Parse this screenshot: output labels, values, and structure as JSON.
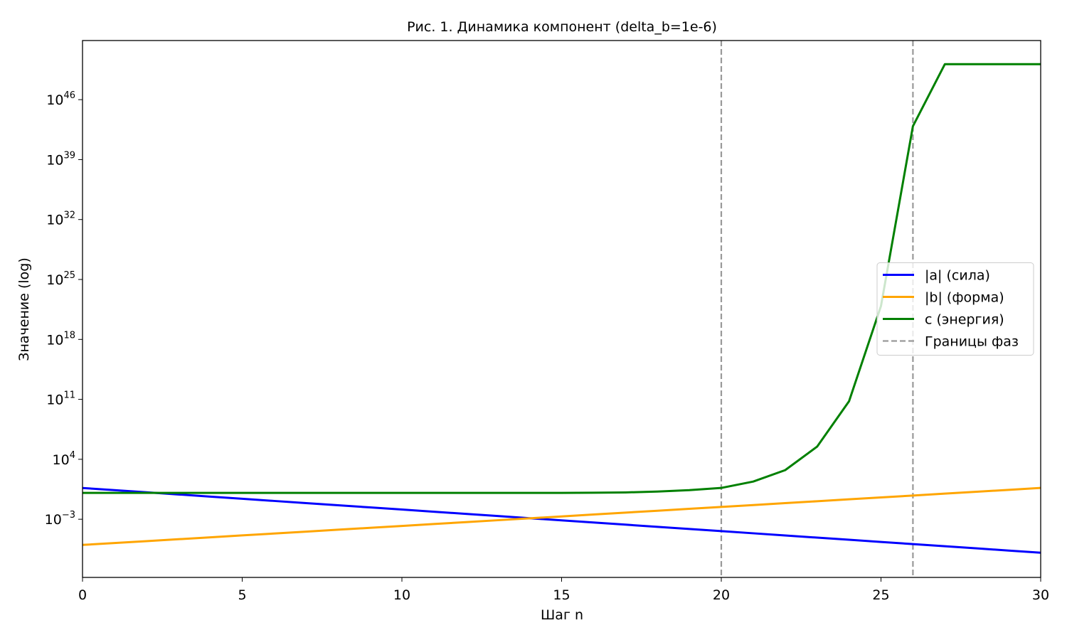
{
  "chart_data": {
    "type": "line",
    "title": "Рис. 1. Динамика компонент (delta_b=1e-6)",
    "x_label": "Шаг n",
    "y_label": "Значение (log)",
    "x": [
      0,
      1,
      2,
      3,
      4,
      5,
      6,
      7,
      8,
      9,
      10,
      11,
      12,
      13,
      14,
      15,
      16,
      17,
      18,
      19,
      20,
      21,
      22,
      23,
      24,
      25,
      26,
      27,
      28,
      29,
      30
    ],
    "series": [
      {
        "name": "|a| (сила)",
        "color": "#0000ff",
        "values": [
          4.47,
          2.5,
          1.4,
          0.783,
          0.439,
          0.245,
          0.137,
          0.0769,
          0.0431,
          0.0241,
          0.0135,
          0.00755,
          0.00423,
          0.00237,
          0.00132,
          0.000741,
          0.000415,
          0.000232,
          0.00013,
          7.28e-05,
          4.07e-05,
          2.28e-05,
          1.28e-05,
          7.14e-06,
          4e-06,
          2.24e-06,
          1.25e-06,
          7e-07,
          3.93e-07,
          2.2e-07,
          1.23e-07
        ]
      },
      {
        "name": "|b| (форма)",
        "color": "#ffa500",
        "values": [
          1e-06,
          1.667e-06,
          2.778e-06,
          4.63e-06,
          7.716e-06,
          1.286e-05,
          2.143e-05,
          3.572e-05,
          5.954e-05,
          9.923e-05,
          0.0001654,
          0.0002756,
          0.0004594,
          0.0007656,
          0.001276,
          0.002127,
          0.003545,
          0.005908,
          0.009846,
          0.01641,
          0.02735,
          0.04559,
          0.07598,
          0.1266,
          0.211,
          0.3517,
          0.5862,
          0.977,
          1.628,
          2.714,
          4.523
        ]
      },
      {
        "name": "c (энергия)",
        "color": "#008000",
        "values": [
          1.2,
          1.2,
          1.2,
          1.2,
          1.2,
          1.2,
          1.2,
          1.2,
          1.2,
          1.2,
          1.2,
          1.2,
          1.2,
          1.2,
          1.2,
          1.2,
          1.25,
          1.35,
          1.7,
          2.5,
          4.5,
          25,
          540,
          300000.0,
          60000000000.0,
          8e+21,
          8e+42,
          1.4e+50,
          1.4e+50,
          1.4e+50,
          1.4e+50
        ]
      }
    ],
    "phase_boundaries_name": "Границы фаз",
    "phase_boundaries_color": "#999999",
    "phase_boundaries": [
      20,
      26
    ],
    "xlim": [
      0,
      30
    ],
    "xticks": [
      0,
      5,
      10,
      15,
      20,
      25,
      30
    ],
    "ylim": [
      1.6e-10,
      8e+52
    ],
    "log_y": true,
    "yticks": [
      {
        "value": 0.001,
        "label": "10",
        "exponent": "−3"
      },
      {
        "value": 10000.0,
        "label": "10",
        "exponent": "4"
      },
      {
        "value": 100000000000.0,
        "label": "10",
        "exponent": "11"
      },
      {
        "value": 1e+18,
        "label": "10",
        "exponent": "18"
      },
      {
        "value": 1e+25,
        "label": "10",
        "exponent": "25"
      },
      {
        "value": 1e+32,
        "label": "10",
        "exponent": "32"
      },
      {
        "value": 1e+39,
        "label": "10",
        "exponent": "39"
      },
      {
        "value": 1e+46,
        "label": "10",
        "exponent": "46"
      }
    ],
    "legend": "center right"
  }
}
